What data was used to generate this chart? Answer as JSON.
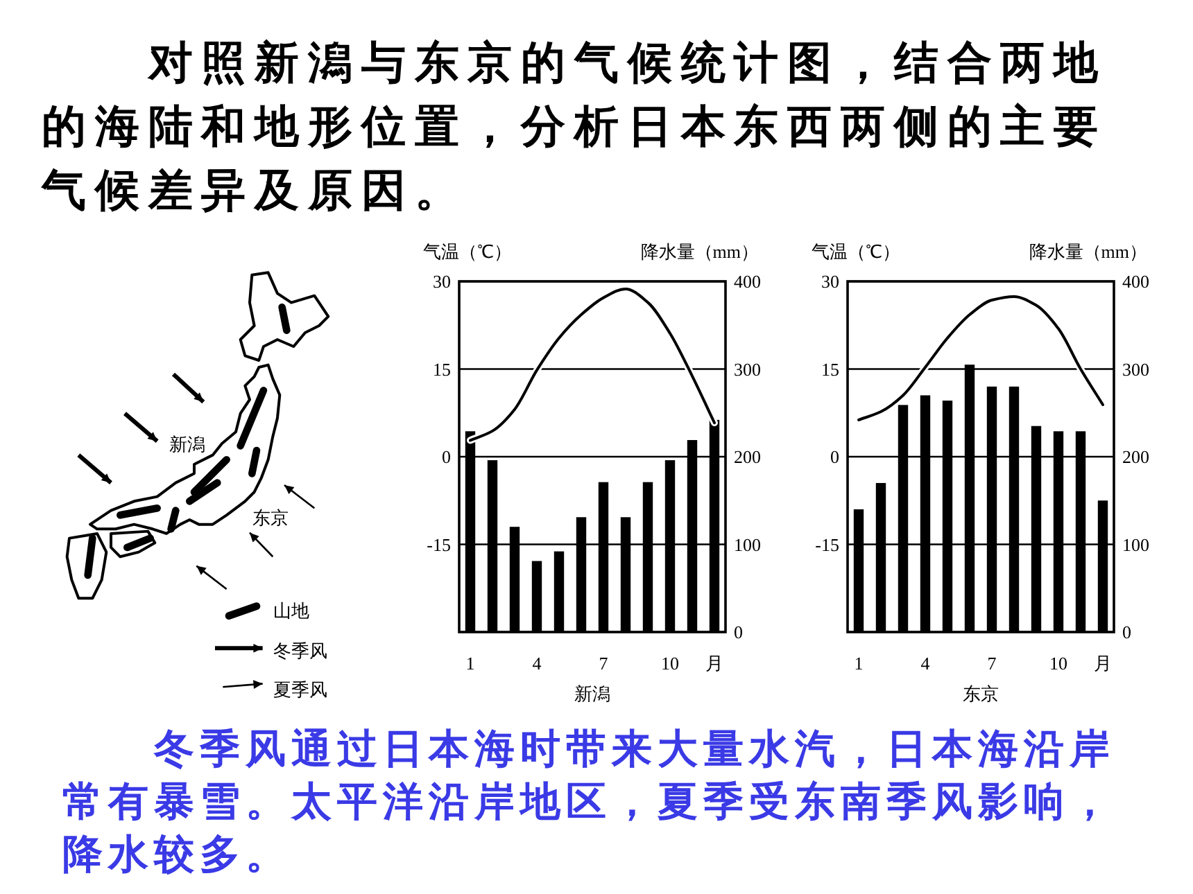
{
  "chart_data": [
    {
      "type": "other",
      "title": "对照新潟与东京的气候统计图，结合两地的海陆和地形位置，分析日本东西两侧的主要气候差异及原因。",
      "annotations": [
        "新潟",
        "东京",
        "山地",
        "冬季风",
        "夏季风"
      ]
    },
    {
      "type": "bar",
      "categories": [
        "1",
        null,
        null,
        "4",
        null,
        null,
        "7",
        null,
        null,
        "10",
        null,
        "月"
      ],
      "xlabel": "新潟",
      "ylabel": "气温（℃）",
      "y2label": "降水量（mm）",
      "ylim": [
        -30,
        30
      ],
      "yticks": [
        -15,
        0,
        15,
        30
      ],
      "y2lim": [
        0,
        400
      ],
      "y2ticks": [
        0,
        100,
        200,
        300,
        400
      ],
      "grid": "y",
      "series": [
        {
          "type": "bar",
          "axis": "y2",
          "color": "#000000",
          "values": [
            229,
            196,
            120,
            81,
            92,
            131,
            171,
            131,
            171,
            196,
            219,
            242
          ]
        },
        {
          "type": "line",
          "color": "#000000",
          "values": [
            2.8,
            4.4,
            8.1,
            14.8,
            20.3,
            24.3,
            27.2,
            28.7,
            26.4,
            21.1,
            13.8,
            5.8
          ]
        }
      ]
    },
    {
      "type": "bar",
      "categories": [
        "1",
        null,
        null,
        "4",
        null,
        null,
        "7",
        null,
        null,
        "10",
        null,
        "月"
      ],
      "xlabel": "东京",
      "ylabel": "气温（℃）",
      "y2label": "降水量（mm）",
      "ylim": [
        -30,
        30
      ],
      "yticks": [
        -15,
        0,
        15,
        30
      ],
      "y2lim": [
        0,
        400
      ],
      "y2ticks": [
        0,
        100,
        200,
        300,
        400
      ],
      "grid": "y",
      "series": [
        {
          "type": "bar",
          "axis": "y2",
          "color": "#000000",
          "values": [
            140,
            170,
            259,
            270,
            264,
            305,
            280,
            280,
            235,
            229,
            229,
            150
          ]
        },
        {
          "type": "line",
          "color": "#000000",
          "values": [
            6.3,
            7.7,
            10.5,
            15.3,
            20.3,
            24.3,
            26.8,
            27.4,
            25.9,
            21.9,
            15.0,
            8.9
          ]
        }
      ]
    },
    {
      "type": "other",
      "annotations": [
        "冬季风通过日本海时带来大量水汽，日本海沿岸常有暴雪。太平洋沿岸地区，夏季受东南季风影响，降水较多。"
      ]
    }
  ]
}
